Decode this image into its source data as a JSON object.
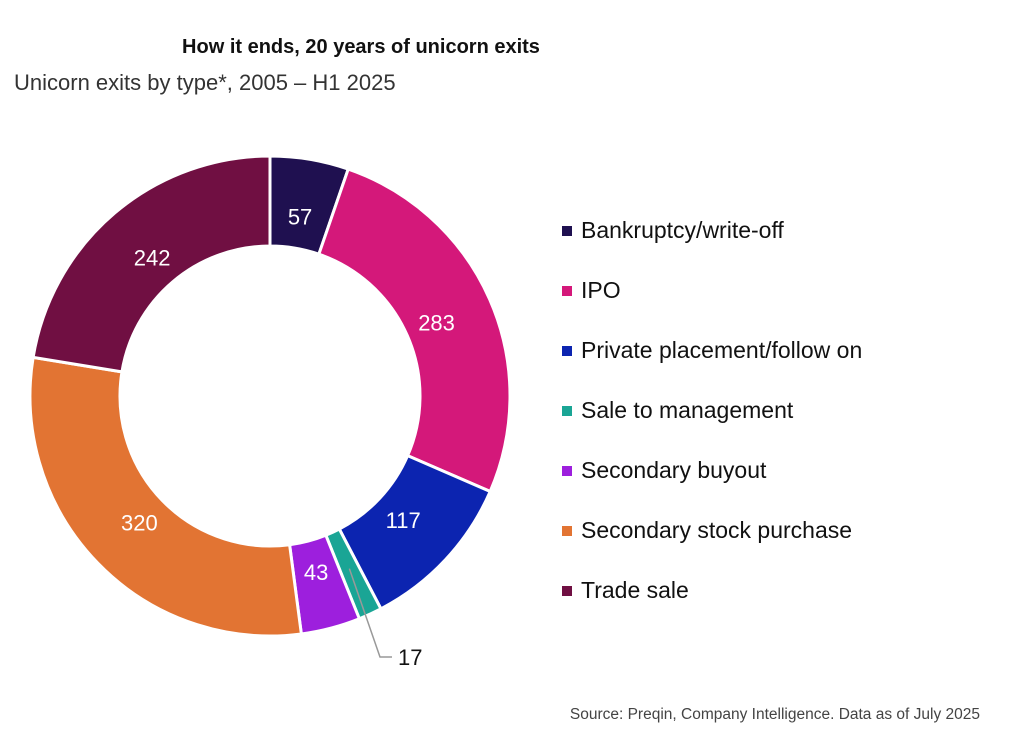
{
  "chart_data": {
    "type": "pie",
    "variant": "donut",
    "title": "How it ends, 20 years of unicorn exits",
    "subtitle": "Unicorn exits by type*, 2005 – H1 2025",
    "source": "Source: Preqin, Company Intelligence. Data as of July 2025",
    "legend_position": "right",
    "slices": [
      {
        "label": "Bankruptcy/write-off",
        "value": 57,
        "value_label": "57",
        "color": "#1f1050"
      },
      {
        "label": "IPO",
        "value": 283,
        "value_label": "283",
        "color": "#d4187a"
      },
      {
        "label": "Private placement/follow on",
        "value": 117,
        "value_label": "117",
        "color": "#0c24b0"
      },
      {
        "label": "Sale to management",
        "value": 17,
        "value_label": "17",
        "color": "#1aa595"
      },
      {
        "label": "Secondary buyout",
        "value": 43,
        "value_label": "43",
        "color": "#9d1fdd"
      },
      {
        "label": "Secondary stock purchase",
        "value": 320,
        "value_label": "320",
        "color": "#e27433"
      },
      {
        "label": "Trade sale",
        "value": 242,
        "value_label": "242",
        "color": "#700f42"
      }
    ]
  }
}
